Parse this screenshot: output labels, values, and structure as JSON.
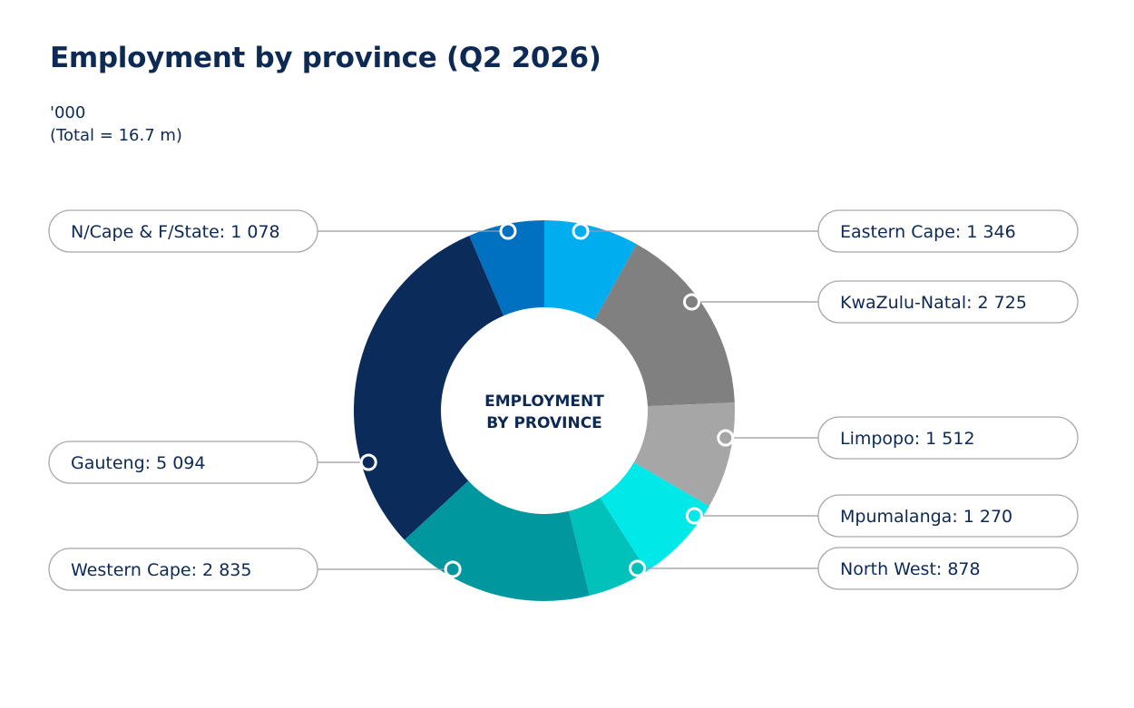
{
  "title": "Employment by province (Q2 2026)",
  "subtitle": {
    "unit": "'000",
    "total": "(Total = 16.7 m)"
  },
  "chart_data": {
    "type": "pie",
    "style": "donut",
    "center_label": [
      "EMPLOYMENT",
      "BY PROVINCE"
    ],
    "slices": [
      {
        "label": "Eastern Cape",
        "value": 1346,
        "display": "Eastern Cape: 1 346",
        "color": "#00adee",
        "side": "right"
      },
      {
        "label": "KwaZulu-Natal",
        "value": 2725,
        "display": "KwaZulu-Natal: 2 725",
        "color": "#808080",
        "side": "right"
      },
      {
        "label": "Limpopo",
        "value": 1512,
        "display": "Limpopo: 1 512",
        "color": "#a6a6a6",
        "side": "right"
      },
      {
        "label": "Mpumalanga",
        "value": 1270,
        "display": "Mpumalanga: 1 270",
        "color": "#00e8e8",
        "side": "right"
      },
      {
        "label": "North West",
        "value": 878,
        "display": "North West: 878",
        "color": "#00c2bb",
        "side": "right"
      },
      {
        "label": "Western Cape",
        "value": 2835,
        "display": "Western Cape: 2 835",
        "color": "#00979e",
        "side": "left"
      },
      {
        "label": "Gauteng",
        "value": 5094,
        "display": "Gauteng: 5 094",
        "color": "#0b2c5a",
        "side": "left"
      },
      {
        "label": "N/Cape & F/State",
        "value": 1078,
        "display": "N/Cape & F/State: 1 078",
        "color": "#0070c0",
        "side": "left"
      }
    ]
  }
}
